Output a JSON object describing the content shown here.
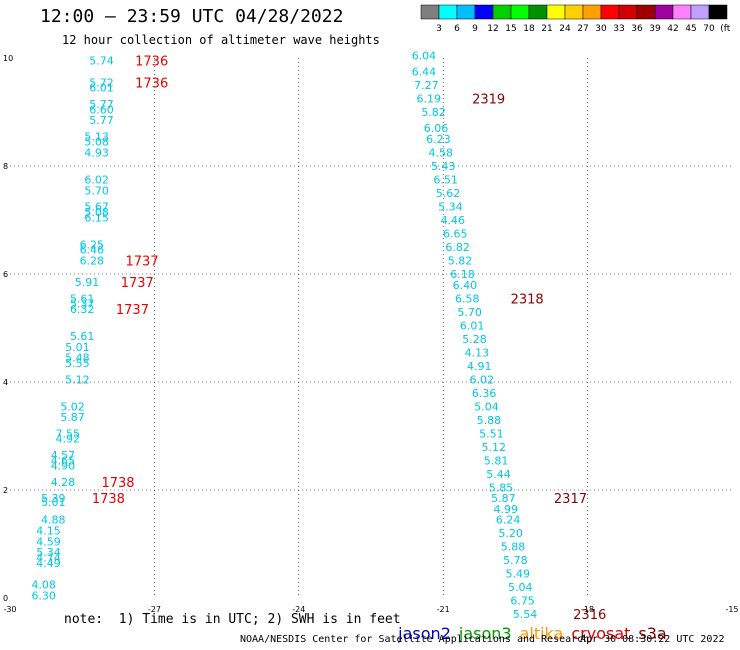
{
  "header": {
    "title": "12:00 – 23:59 UTC 04/28/2022",
    "subtitle": "12 hour collection of altimeter wave heights"
  },
  "legend": {
    "colors": [
      "#7f7f7f",
      "#00ffff",
      "#00bfff",
      "#0000ff",
      "#00d000",
      "#00ff00",
      "#009000",
      "#ffff00",
      "#ffd000",
      "#ffa000",
      "#ff0000",
      "#d00000",
      "#a00000",
      "#a000a0",
      "#ff80ff",
      "#c0a0ff",
      "#000000"
    ],
    "labels": [
      "3",
      "6",
      "9",
      "12",
      "15",
      "18",
      "21",
      "24",
      "27",
      "30",
      "33",
      "36",
      "39",
      "42",
      "45",
      "70",
      "(ft)"
    ]
  },
  "footer": {
    "note": "note:  1) Time is in UTC; 2) SWH is in feet",
    "credit": "NOAA/NESDIS Center for Satellite Applications and Research",
    "timestamp": "Apr 30 08:30:22 UTC 2022"
  },
  "satellites": [
    {
      "name": "jason2",
      "color": "#0000cc"
    },
    {
      "name": "jason3",
      "color": "#009900"
    },
    {
      "name": "altika",
      "color": "#ff9900"
    },
    {
      "name": "cryosat",
      "color": "#dd0000"
    },
    {
      "name": "s3a",
      "color": "#800000"
    }
  ],
  "chart_data": {
    "type": "scatter",
    "xlim": [
      -30,
      -15
    ],
    "ylim": [
      0,
      10
    ],
    "x_ticks": [
      "-30",
      "-27",
      "-24",
      "-21",
      "-18",
      "-15"
    ],
    "y_ticks": [
      "0",
      "2",
      "4",
      "6",
      "8",
      "10"
    ],
    "grid": true,
    "value_color": "#00c8e6",
    "tracks": [
      {
        "satellite": "cryosat",
        "color": "#ee0000",
        "points": [
          {
            "x": -28.1,
            "y": 9.95,
            "v": "5.74"
          },
          {
            "x": -28.1,
            "y": 9.55,
            "v": "5.72"
          },
          {
            "x": -28.1,
            "y": 9.45,
            "v": "6.01"
          },
          {
            "x": -28.1,
            "y": 9.15,
            "v": "5.77"
          },
          {
            "x": -28.1,
            "y": 9.05,
            "v": "6.60"
          },
          {
            "x": -28.1,
            "y": 8.85,
            "v": "5.77"
          },
          {
            "x": -28.2,
            "y": 8.55,
            "v": "5.13"
          },
          {
            "x": -28.2,
            "y": 8.45,
            "v": "5.08"
          },
          {
            "x": -28.2,
            "y": 8.25,
            "v": "4.93"
          },
          {
            "x": -28.2,
            "y": 7.75,
            "v": "6.02"
          },
          {
            "x": -28.2,
            "y": 7.55,
            "v": "5.70"
          },
          {
            "x": -28.2,
            "y": 7.25,
            "v": "5.67"
          },
          {
            "x": -28.2,
            "y": 7.15,
            "v": "5.08"
          },
          {
            "x": -28.2,
            "y": 7.05,
            "v": "6.15"
          },
          {
            "x": -28.3,
            "y": 6.55,
            "v": "6.25"
          },
          {
            "x": -28.3,
            "y": 6.45,
            "v": "6.46"
          },
          {
            "x": -28.3,
            "y": 6.25,
            "v": "6.28"
          },
          {
            "x": -28.4,
            "y": 5.85,
            "v": "5.91"
          },
          {
            "x": -28.5,
            "y": 5.55,
            "v": "5.61"
          },
          {
            "x": -28.5,
            "y": 5.45,
            "v": "5.37"
          },
          {
            "x": -28.5,
            "y": 5.35,
            "v": "6.32"
          },
          {
            "x": -28.5,
            "y": 4.85,
            "v": "5.61"
          },
          {
            "x": -28.6,
            "y": 4.65,
            "v": "5.01"
          },
          {
            "x": -28.6,
            "y": 4.45,
            "v": "5.48"
          },
          {
            "x": -28.6,
            "y": 4.35,
            "v": "5.55"
          },
          {
            "x": -28.6,
            "y": 4.05,
            "v": "5.12"
          },
          {
            "x": -28.7,
            "y": 3.55,
            "v": "5.02"
          },
          {
            "x": -28.7,
            "y": 3.35,
            "v": "5.87"
          },
          {
            "x": -28.8,
            "y": 3.05,
            "v": "7.55"
          },
          {
            "x": -28.8,
            "y": 2.95,
            "v": "4.92"
          },
          {
            "x": -28.9,
            "y": 2.65,
            "v": "4.57"
          },
          {
            "x": -28.9,
            "y": 2.55,
            "v": "4.65"
          },
          {
            "x": -28.9,
            "y": 2.45,
            "v": "4.90"
          },
          {
            "x": -28.9,
            "y": 2.15,
            "v": "4.28"
          },
          {
            "x": -29.1,
            "y": 1.85,
            "v": "5.39"
          },
          {
            "x": -29.1,
            "y": 1.78,
            "v": "5.01"
          },
          {
            "x": -29.1,
            "y": 1.45,
            "v": "4.88"
          },
          {
            "x": -29.2,
            "y": 1.25,
            "v": "4.15"
          },
          {
            "x": -29.2,
            "y": 1.05,
            "v": "4.59"
          },
          {
            "x": -29.2,
            "y": 0.85,
            "v": "5.34"
          },
          {
            "x": -29.2,
            "y": 0.75,
            "v": "4.74"
          },
          {
            "x": -29.2,
            "y": 0.65,
            "v": "4.49"
          },
          {
            "x": -29.3,
            "y": 0.25,
            "v": "4.08"
          },
          {
            "x": -29.3,
            "y": 0.05,
            "v": "6.30"
          }
        ],
        "times": [
          {
            "x": -27.4,
            "y": 9.95,
            "t": "1736"
          },
          {
            "x": -27.4,
            "y": 9.55,
            "t": "1736"
          },
          {
            "x": -27.6,
            "y": 6.25,
            "t": "1737"
          },
          {
            "x": -27.7,
            "y": 5.85,
            "t": "1737"
          },
          {
            "x": -27.8,
            "y": 5.35,
            "t": "1737"
          },
          {
            "x": -28.1,
            "y": 2.15,
            "t": "1738"
          },
          {
            "x": -28.3,
            "y": 1.85,
            "t": "1738"
          }
        ]
      },
      {
        "satellite": "s3a",
        "color": "#8b0000",
        "points": [
          {
            "x": -21.4,
            "y": 10.05,
            "v": "6.04"
          },
          {
            "x": -21.4,
            "y": 9.75,
            "v": "6.44"
          },
          {
            "x": -21.35,
            "y": 9.5,
            "v": "7.27"
          },
          {
            "x": -21.3,
            "y": 9.25,
            "v": "6.19"
          },
          {
            "x": -21.2,
            "y": 9.0,
            "v": "5.82"
          },
          {
            "x": -21.15,
            "y": 8.7,
            "v": "6.06"
          },
          {
            "x": -21.1,
            "y": 8.5,
            "v": "6.23"
          },
          {
            "x": -21.05,
            "y": 8.25,
            "v": "4.58"
          },
          {
            "x": -21.0,
            "y": 8.0,
            "v": "5.43"
          },
          {
            "x": -20.95,
            "y": 7.75,
            "v": "6.51"
          },
          {
            "x": -20.9,
            "y": 7.5,
            "v": "5.62"
          },
          {
            "x": -20.85,
            "y": 7.25,
            "v": "5.34"
          },
          {
            "x": -20.8,
            "y": 7.0,
            "v": "4.46"
          },
          {
            "x": -20.75,
            "y": 6.75,
            "v": "6.65"
          },
          {
            "x": -20.7,
            "y": 6.5,
            "v": "6.82"
          },
          {
            "x": -20.65,
            "y": 6.25,
            "v": "5.82"
          },
          {
            "x": -20.6,
            "y": 6.0,
            "v": "6.18"
          },
          {
            "x": -20.55,
            "y": 5.8,
            "v": "6.40"
          },
          {
            "x": -20.5,
            "y": 5.55,
            "v": "6.58"
          },
          {
            "x": -20.45,
            "y": 5.3,
            "v": "5.70"
          },
          {
            "x": -20.4,
            "y": 5.05,
            "v": "6.01"
          },
          {
            "x": -20.35,
            "y": 4.8,
            "v": "5.28"
          },
          {
            "x": -20.3,
            "y": 4.55,
            "v": "4.13"
          },
          {
            "x": -20.25,
            "y": 4.3,
            "v": "4.91"
          },
          {
            "x": -20.2,
            "y": 4.05,
            "v": "6.02"
          },
          {
            "x": -20.15,
            "y": 3.8,
            "v": "6.36"
          },
          {
            "x": -20.1,
            "y": 3.55,
            "v": "5.04"
          },
          {
            "x": -20.05,
            "y": 3.3,
            "v": "5.88"
          },
          {
            "x": -20.0,
            "y": 3.05,
            "v": "5.51"
          },
          {
            "x": -19.95,
            "y": 2.8,
            "v": "5.12"
          },
          {
            "x": -19.9,
            "y": 2.55,
            "v": "5.81"
          },
          {
            "x": -19.85,
            "y": 2.3,
            "v": "5.44"
          },
          {
            "x": -19.8,
            "y": 2.05,
            "v": "5.85"
          },
          {
            "x": -19.75,
            "y": 1.85,
            "v": "5.87"
          },
          {
            "x": -19.7,
            "y": 1.65,
            "v": "4.99"
          },
          {
            "x": -19.65,
            "y": 1.45,
            "v": "6.24"
          },
          {
            "x": -19.6,
            "y": 1.2,
            "v": "5.20"
          },
          {
            "x": -19.55,
            "y": 0.95,
            "v": "5.88"
          },
          {
            "x": -19.5,
            "y": 0.7,
            "v": "5.78"
          },
          {
            "x": -19.45,
            "y": 0.45,
            "v": "5.49"
          },
          {
            "x": -19.4,
            "y": 0.2,
            "v": "5.04"
          },
          {
            "x": -19.35,
            "y": -0.05,
            "v": "6.75"
          },
          {
            "x": -19.3,
            "y": -0.3,
            "v": "5.54"
          }
        ],
        "times": [
          {
            "x": -20.4,
            "y": 9.25,
            "t": "2319"
          },
          {
            "x": -19.6,
            "y": 5.55,
            "t": "2318"
          },
          {
            "x": -18.7,
            "y": 1.85,
            "t": "2317"
          },
          {
            "x": -18.3,
            "y": -0.3,
            "t": "2316"
          }
        ]
      }
    ]
  }
}
